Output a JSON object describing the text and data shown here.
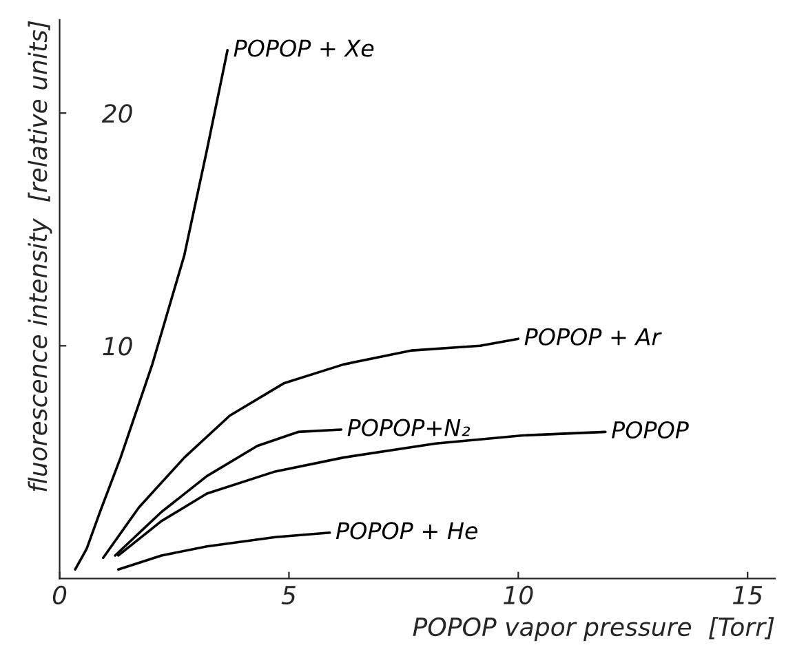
{
  "chart_data": {
    "type": "line",
    "xlabel": "POPOP vapor pressure  [Torr]",
    "ylabel": "fluorescence intensity  [relative units]",
    "xlim": [
      0,
      15.6
    ],
    "ylim": [
      0,
      24
    ],
    "xticks": [
      0,
      5,
      10,
      15
    ],
    "yticks": [
      10,
      20
    ],
    "grid": false,
    "legend": false,
    "marker": "none",
    "line_style": "solid",
    "series": [
      {
        "name": "POPOP + Xe",
        "color": "#000000",
        "x": [
          0.34,
          0.59,
          0.88,
          1.33,
          2.02,
          2.72,
          3.21,
          3.66
        ],
        "values": [
          0.39,
          1.28,
          2.86,
          5.2,
          9.2,
          13.9,
          18.4,
          22.7
        ]
      },
      {
        "name": "POPOP + Ar",
        "color": "#000000",
        "x": [
          0.95,
          1.73,
          2.72,
          3.71,
          4.9,
          6.19,
          7.68,
          9.17,
          10.0
        ],
        "values": [
          0.89,
          3.06,
          5.2,
          7.0,
          8.4,
          9.2,
          9.8,
          10.0,
          10.3
        ]
      },
      {
        "name": "POPOP+N₂",
        "color": "#000000",
        "x": [
          1.21,
          2.22,
          3.21,
          4.31,
          5.2,
          6.14
        ],
        "values": [
          0.99,
          2.86,
          4.4,
          5.7,
          6.3,
          6.4
        ]
      },
      {
        "name": "POPOP",
        "color": "#000000",
        "x": [
          1.28,
          2.22,
          3.21,
          4.7,
          6.19,
          8.2,
          10.1,
          11.9
        ],
        "values": [
          0.99,
          2.47,
          3.65,
          4.6,
          5.2,
          5.8,
          6.15,
          6.3
        ]
      },
      {
        "name": "POPOP + He",
        "color": "#000000",
        "x": [
          1.28,
          2.22,
          3.21,
          4.7,
          5.89
        ],
        "values": [
          0.39,
          0.99,
          1.38,
          1.78,
          1.97
        ]
      }
    ]
  }
}
